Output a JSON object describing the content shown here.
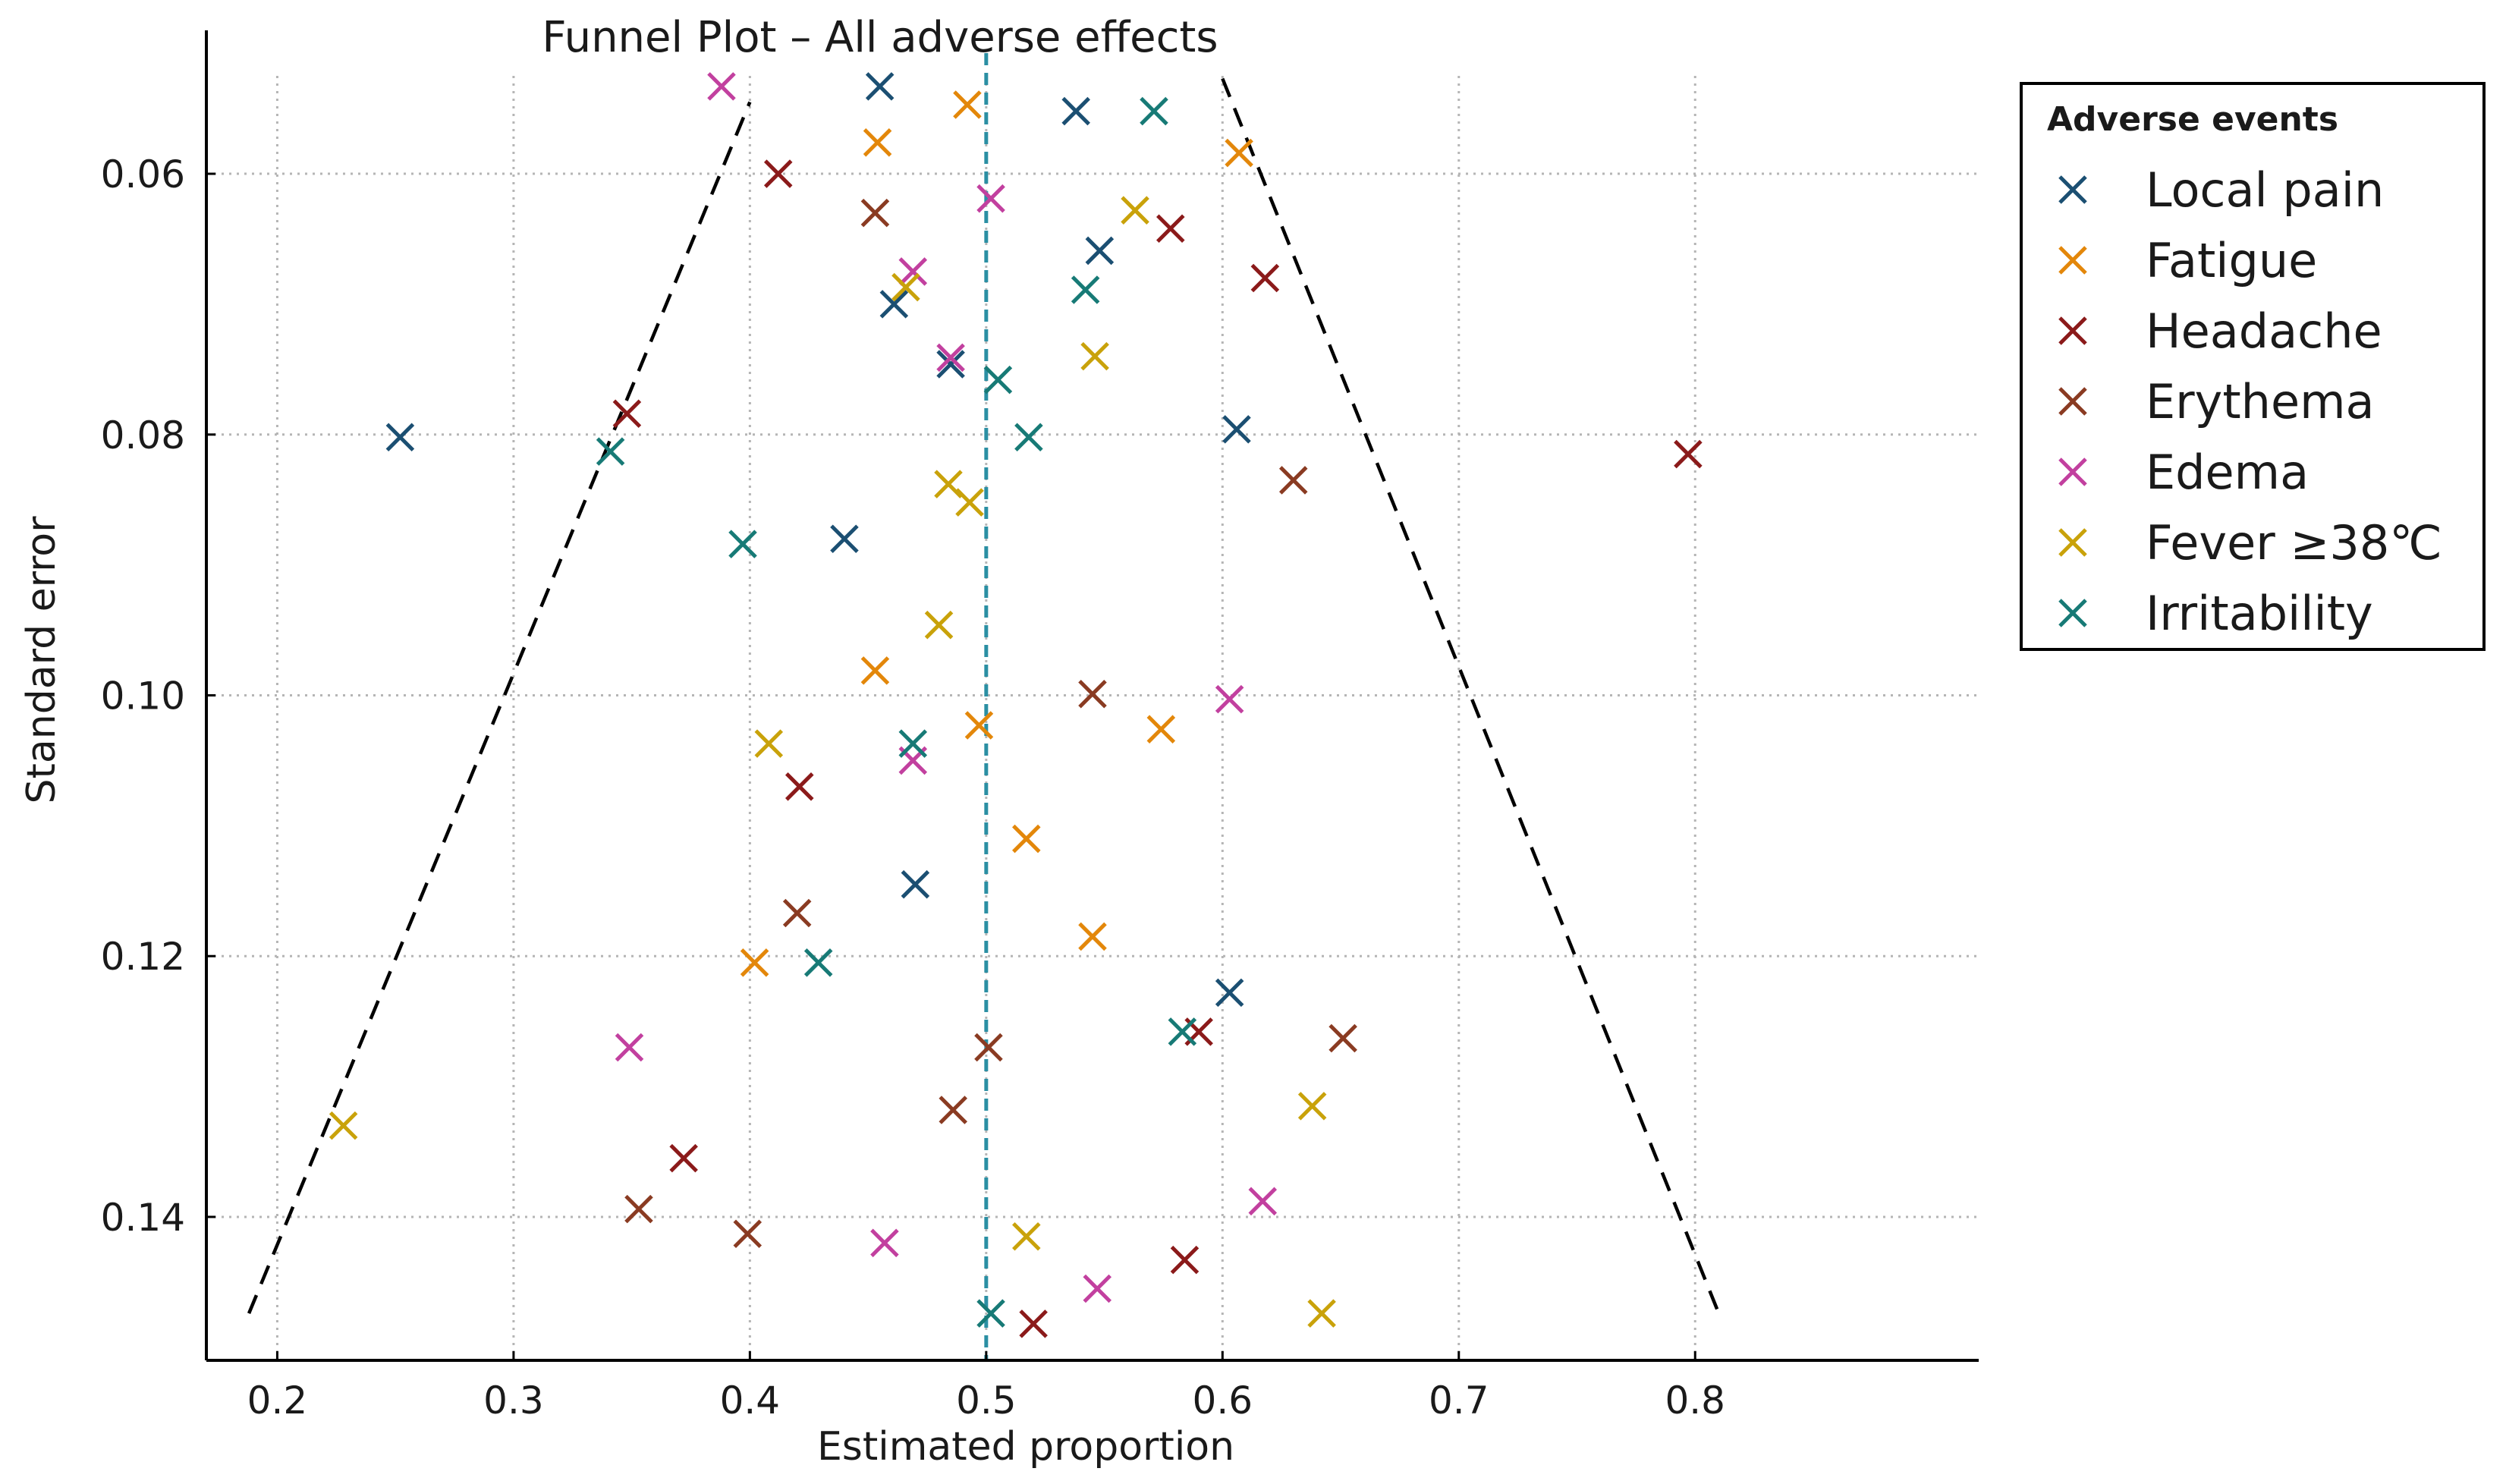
{
  "chart_data": {
    "type": "scatter",
    "title": "Funnel Plot – All adverse effects",
    "xlabel": "Estimated proportion",
    "ylabel": "Standard error",
    "xlim": [
      0.17,
      0.92
    ],
    "ylim": [
      0.049,
      0.151
    ],
    "y_inverted": true,
    "x_ticks": [
      0.2,
      0.3,
      0.4,
      0.5,
      0.6,
      0.7,
      0.8
    ],
    "x_tick_labels": [
      "0.2",
      "0.3",
      "0.4",
      "0.5",
      "0.6",
      "0.7",
      "0.8"
    ],
    "x_grid": [
      0.2,
      0.3,
      0.4,
      0.5,
      0.6,
      0.7,
      0.8
    ],
    "y_ticks": [
      0.06,
      0.08,
      0.1,
      0.12,
      0.14
    ],
    "y_tick_labels": [
      "0.06",
      "0.08",
      "0.10",
      "0.12",
      "0.14"
    ],
    "grid": true,
    "reference_line": {
      "x": 0.5,
      "color": "#2b8fa3",
      "style": "dashed"
    },
    "funnel_lines": [
      {
        "x": [
          0.188,
          0.4
        ],
        "y": [
          0.1474,
          0.0545
        ]
      },
      {
        "x": [
          0.6,
          0.81
        ],
        "y": [
          0.0527,
          0.1474
        ]
      }
    ],
    "legend": {
      "title": "Adverse events",
      "position": "top-right-outside"
    },
    "series": [
      {
        "name": "Local pain",
        "color": "#1b4f72",
        "points": [
          {
            "x": 0.252,
            "y": 0.0802
          },
          {
            "x": 0.455,
            "y": 0.0533
          },
          {
            "x": 0.538,
            "y": 0.0552
          },
          {
            "x": 0.548,
            "y": 0.0659
          },
          {
            "x": 0.461,
            "y": 0.07
          },
          {
            "x": 0.485,
            "y": 0.0746
          },
          {
            "x": 0.606,
            "y": 0.0796
          },
          {
            "x": 0.44,
            "y": 0.088
          },
          {
            "x": 0.47,
            "y": 0.1145
          },
          {
            "x": 0.603,
            "y": 0.1228
          }
        ]
      },
      {
        "name": "Fatigue",
        "color": "#e3870a",
        "points": [
          {
            "x": 0.492,
            "y": 0.0547
          },
          {
            "x": 0.454,
            "y": 0.0576
          },
          {
            "x": 0.607,
            "y": 0.0584
          },
          {
            "x": 0.453,
            "y": 0.0981
          },
          {
            "x": 0.497,
            "y": 0.1023
          },
          {
            "x": 0.574,
            "y": 0.1026
          },
          {
            "x": 0.517,
            "y": 0.111
          },
          {
            "x": 0.402,
            "y": 0.1205
          },
          {
            "x": 0.545,
            "y": 0.1185
          }
        ]
      },
      {
        "name": "Headache",
        "color": "#8b1a1a",
        "points": [
          {
            "x": 0.412,
            "y": 0.06
          },
          {
            "x": 0.578,
            "y": 0.0642
          },
          {
            "x": 0.618,
            "y": 0.068
          },
          {
            "x": 0.348,
            "y": 0.0784
          },
          {
            "x": 0.797,
            "y": 0.0815
          },
          {
            "x": 0.421,
            "y": 0.107
          },
          {
            "x": 0.59,
            "y": 0.1258
          },
          {
            "x": 0.372,
            "y": 0.1355
          },
          {
            "x": 0.584,
            "y": 0.1433
          },
          {
            "x": 0.52,
            "y": 0.1482
          }
        ]
      },
      {
        "name": "Erythema",
        "color": "#8a3b22",
        "points": [
          {
            "x": 0.453,
            "y": 0.063
          },
          {
            "x": 0.63,
            "y": 0.0835
          },
          {
            "x": 0.545,
            "y": 0.0999
          },
          {
            "x": 0.42,
            "y": 0.1167
          },
          {
            "x": 0.501,
            "y": 0.127
          },
          {
            "x": 0.651,
            "y": 0.1263
          },
          {
            "x": 0.486,
            "y": 0.1318
          },
          {
            "x": 0.353,
            "y": 0.1394
          },
          {
            "x": 0.399,
            "y": 0.1413
          }
        ]
      },
      {
        "name": "Edema",
        "color": "#c2409f",
        "points": [
          {
            "x": 0.388,
            "y": 0.0533
          },
          {
            "x": 0.502,
            "y": 0.0619
          },
          {
            "x": 0.469,
            "y": 0.0675
          },
          {
            "x": 0.485,
            "y": 0.0741
          },
          {
            "x": 0.603,
            "y": 0.1003
          },
          {
            "x": 0.469,
            "y": 0.105
          },
          {
            "x": 0.349,
            "y": 0.127
          },
          {
            "x": 0.617,
            "y": 0.1388
          },
          {
            "x": 0.457,
            "y": 0.142
          },
          {
            "x": 0.547,
            "y": 0.1455
          }
        ]
      },
      {
        "name": "Fever ≥38℃",
        "color": "#c9a20a",
        "points": [
          {
            "x": 0.563,
            "y": 0.0628
          },
          {
            "x": 0.466,
            "y": 0.0687
          },
          {
            "x": 0.546,
            "y": 0.074
          },
          {
            "x": 0.484,
            "y": 0.0838
          },
          {
            "x": 0.493,
            "y": 0.0852
          },
          {
            "x": 0.48,
            "y": 0.0946
          },
          {
            "x": 0.408,
            "y": 0.1037
          },
          {
            "x": 0.228,
            "y": 0.133
          },
          {
            "x": 0.638,
            "y": 0.1315
          },
          {
            "x": 0.517,
            "y": 0.1415
          },
          {
            "x": 0.642,
            "y": 0.1474
          }
        ]
      },
      {
        "name": "Irritability",
        "color": "#177a76",
        "points": [
          {
            "x": 0.571,
            "y": 0.0552
          },
          {
            "x": 0.542,
            "y": 0.0689
          },
          {
            "x": 0.505,
            "y": 0.0758
          },
          {
            "x": 0.518,
            "y": 0.0802
          },
          {
            "x": 0.341,
            "y": 0.0813
          },
          {
            "x": 0.397,
            "y": 0.0884
          },
          {
            "x": 0.469,
            "y": 0.1037
          },
          {
            "x": 0.429,
            "y": 0.1205
          },
          {
            "x": 0.583,
            "y": 0.1258
          },
          {
            "x": 0.502,
            "y": 0.1474
          }
        ]
      }
    ]
  }
}
